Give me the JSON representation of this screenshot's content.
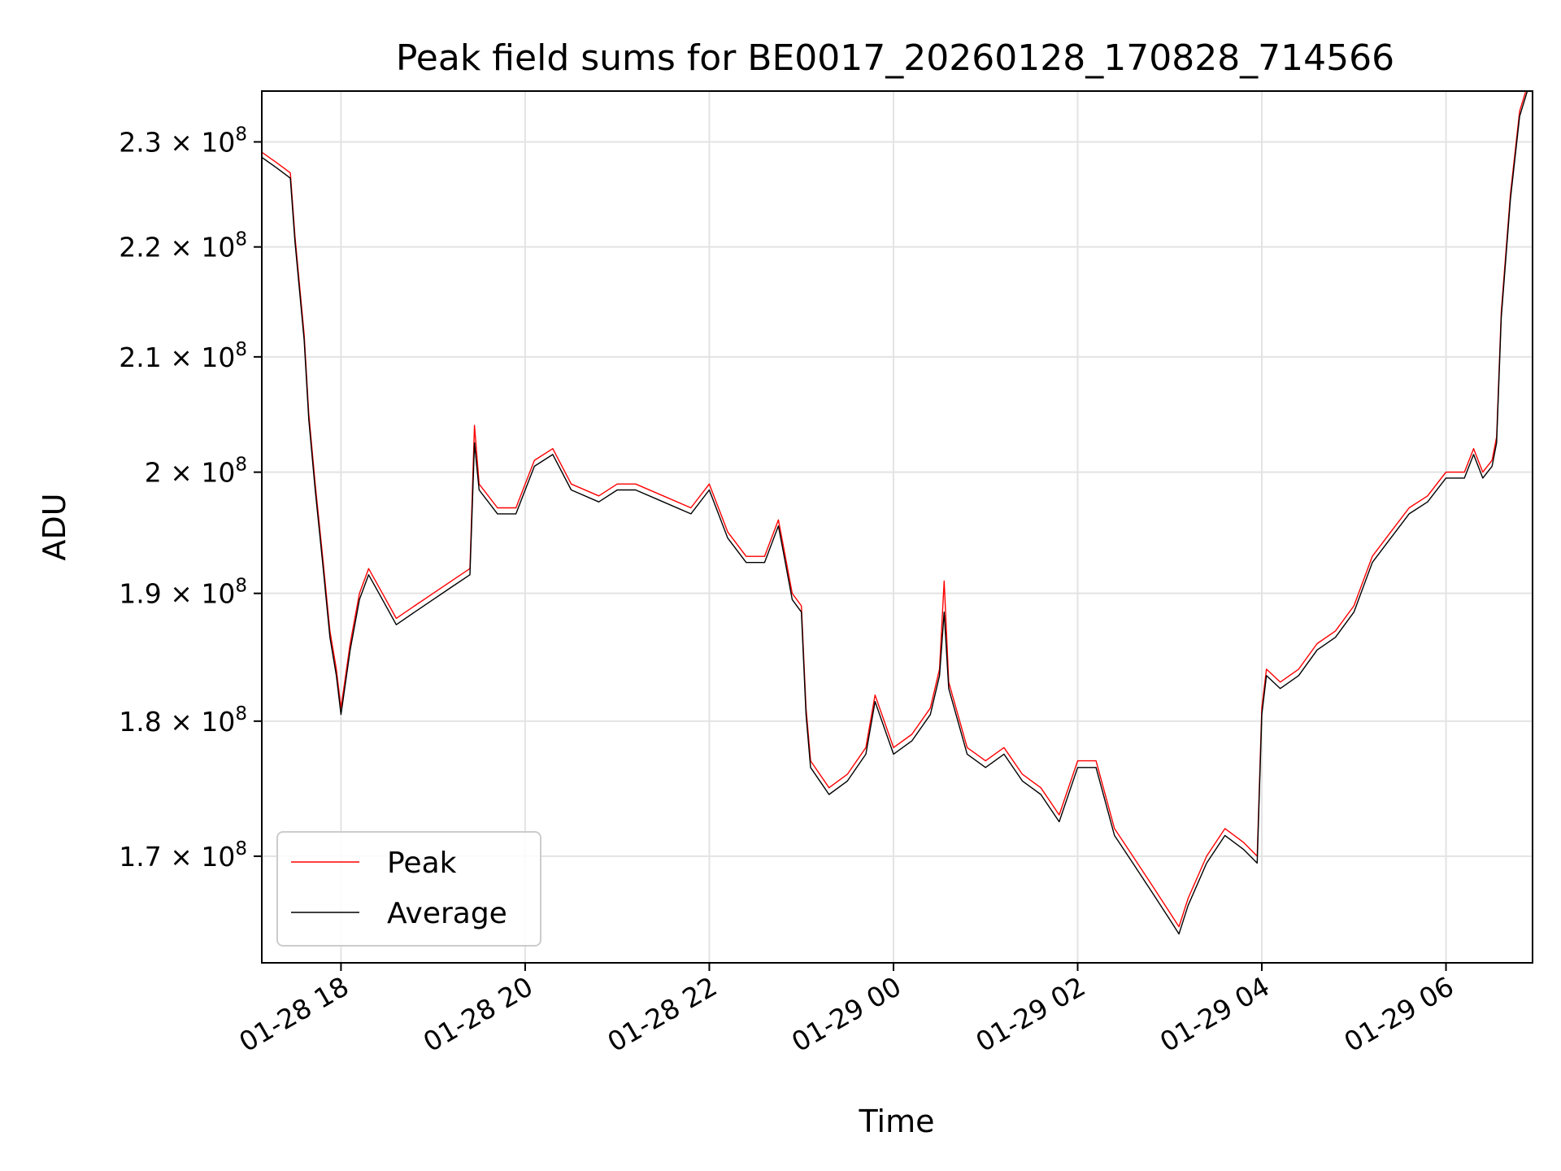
{
  "chart_data": {
    "type": "line",
    "title": "Peak field sums for BE0017_20260128_170828_714566",
    "xlabel": "Time",
    "ylabel": "ADU",
    "x_unit": "hours since 01-28 00:00",
    "xlim": [
      17.14,
      30.94
    ],
    "ylim": [
      162500000,
      235000000
    ],
    "y_scale": "log",
    "grid": true,
    "legend_position": "lower-left",
    "x_ticks": [
      {
        "value": 18,
        "label": "01-28 18"
      },
      {
        "value": 20,
        "label": "01-28 20"
      },
      {
        "value": 22,
        "label": "01-28 22"
      },
      {
        "value": 24,
        "label": "01-29 00"
      },
      {
        "value": 26,
        "label": "01-29 02"
      },
      {
        "value": 28,
        "label": "01-29 04"
      },
      {
        "value": 30,
        "label": "01-29 06"
      }
    ],
    "y_ticks": [
      {
        "value": 170000000,
        "mantissa": "1.7",
        "exponent": "8"
      },
      {
        "value": 180000000,
        "mantissa": "1.8",
        "exponent": "8"
      },
      {
        "value": 190000000,
        "mantissa": "1.9",
        "exponent": "8"
      },
      {
        "value": 200000000,
        "mantissa": "2",
        "exponent": "8"
      },
      {
        "value": 210000000,
        "mantissa": "2.1",
        "exponent": "8"
      },
      {
        "value": 220000000,
        "mantissa": "2.2",
        "exponent": "8"
      },
      {
        "value": 230000000,
        "mantissa": "2.3",
        "exponent": "8"
      }
    ],
    "tick_times_symbol": "×",
    "tick_base": "10",
    "series": [
      {
        "name": "Peak",
        "color": "#ff0000",
        "line_width": 1.4,
        "x": [
          17.14,
          17.3,
          17.45,
          17.5,
          17.6,
          17.65,
          17.72,
          17.8,
          17.88,
          17.95,
          18.0,
          18.1,
          18.2,
          18.3,
          18.45,
          18.6,
          18.8,
          19.0,
          19.2,
          19.4,
          19.45,
          19.5,
          19.7,
          19.9,
          20.1,
          20.3,
          20.5,
          20.8,
          21.0,
          21.2,
          21.5,
          21.8,
          22.0,
          22.2,
          22.4,
          22.6,
          22.75,
          22.8,
          22.9,
          23.0,
          23.05,
          23.1,
          23.3,
          23.5,
          23.7,
          23.8,
          24.0,
          24.2,
          24.4,
          24.5,
          24.55,
          24.6,
          24.8,
          25.0,
          25.2,
          25.4,
          25.6,
          25.8,
          26.0,
          26.2,
          26.4,
          26.6,
          26.8,
          27.0,
          27.1,
          27.2,
          27.4,
          27.6,
          27.8,
          27.95,
          28.0,
          28.05,
          28.2,
          28.4,
          28.6,
          28.8,
          29.0,
          29.2,
          29.4,
          29.6,
          29.8,
          30.0,
          30.2,
          30.3,
          30.4,
          30.5,
          30.55,
          30.6,
          30.7,
          30.8,
          30.9
        ],
        "y": [
          229000000,
          228000000,
          227000000,
          221000000,
          212000000,
          205000000,
          199000000,
          193000000,
          187000000,
          184000000,
          181000000,
          186000000,
          190000000,
          192000000,
          190000000,
          188000000,
          189000000,
          190000000,
          191000000,
          192000000,
          204000000,
          199000000,
          197000000,
          197000000,
          201000000,
          202000000,
          199000000,
          198000000,
          199000000,
          199000000,
          198000000,
          197000000,
          199000000,
          195000000,
          193000000,
          193000000,
          196000000,
          194000000,
          190000000,
          189000000,
          181000000,
          177000000,
          175000000,
          176000000,
          178000000,
          182000000,
          178000000,
          179000000,
          181000000,
          184000000,
          191000000,
          183000000,
          178000000,
          177000000,
          178000000,
          176000000,
          175000000,
          173000000,
          177000000,
          177000000,
          172000000,
          170000000,
          168000000,
          166000000,
          165000000,
          167000000,
          170000000,
          172000000,
          171000000,
          170000000,
          181000000,
          184000000,
          183000000,
          184000000,
          186000000,
          187000000,
          189000000,
          193000000,
          195000000,
          197000000,
          198000000,
          200000000,
          200000000,
          202000000,
          200000000,
          201000000,
          203000000,
          214000000,
          225000000,
          233000000,
          236000000
        ]
      },
      {
        "name": "Average",
        "color": "#000000",
        "line_width": 1.4,
        "x": [
          17.14,
          17.3,
          17.45,
          17.5,
          17.6,
          17.65,
          17.72,
          17.8,
          17.88,
          17.95,
          18.0,
          18.1,
          18.2,
          18.3,
          18.45,
          18.6,
          18.8,
          19.0,
          19.2,
          19.4,
          19.45,
          19.5,
          19.7,
          19.9,
          20.1,
          20.3,
          20.5,
          20.8,
          21.0,
          21.2,
          21.5,
          21.8,
          22.0,
          22.2,
          22.4,
          22.6,
          22.75,
          22.8,
          22.9,
          23.0,
          23.05,
          23.1,
          23.3,
          23.5,
          23.7,
          23.8,
          24.0,
          24.2,
          24.4,
          24.5,
          24.55,
          24.6,
          24.8,
          25.0,
          25.2,
          25.4,
          25.6,
          25.8,
          26.0,
          26.2,
          26.4,
          26.6,
          26.8,
          27.0,
          27.1,
          27.2,
          27.4,
          27.6,
          27.8,
          27.95,
          28.0,
          28.05,
          28.2,
          28.4,
          28.6,
          28.8,
          29.0,
          29.2,
          29.4,
          29.6,
          29.8,
          30.0,
          30.2,
          30.3,
          30.4,
          30.5,
          30.55,
          30.6,
          30.7,
          30.8,
          30.9
        ],
        "y": [
          228500000,
          227500000,
          226500000,
          220500000,
          211500000,
          204500000,
          198500000,
          192500000,
          186500000,
          183500000,
          180500000,
          185500000,
          189500000,
          191500000,
          189500000,
          187500000,
          188500000,
          189500000,
          190500000,
          191500000,
          202500000,
          198500000,
          196500000,
          196500000,
          200500000,
          201500000,
          198500000,
          197500000,
          198500000,
          198500000,
          197500000,
          196500000,
          198500000,
          194500000,
          192500000,
          192500000,
          195500000,
          193500000,
          189500000,
          188500000,
          180500000,
          176500000,
          174500000,
          175500000,
          177500000,
          181500000,
          177500000,
          178500000,
          180500000,
          183500000,
          188500000,
          182500000,
          177500000,
          176500000,
          177500000,
          175500000,
          174500000,
          172500000,
          176500000,
          176500000,
          171500000,
          169500000,
          167500000,
          165500000,
          164500000,
          166500000,
          169500000,
          171500000,
          170500000,
          169500000,
          180500000,
          183500000,
          182500000,
          183500000,
          185500000,
          186500000,
          188500000,
          192500000,
          194500000,
          196500000,
          197500000,
          199500000,
          199500000,
          201500000,
          199500000,
          200500000,
          202500000,
          213500000,
          224500000,
          232500000,
          235500000
        ]
      }
    ]
  }
}
